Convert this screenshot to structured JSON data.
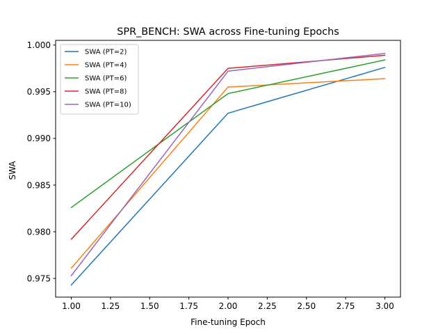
{
  "chart_data": {
    "type": "line",
    "title": "SPR_BENCH: SWA across Fine-tuning Epochs",
    "xlabel": "Fine-tuning Epoch",
    "ylabel": "SWA",
    "x": [
      1,
      2,
      3
    ],
    "xlim": [
      0.9,
      3.1
    ],
    "ylim": [
      0.973,
      1.0005
    ],
    "xticks": [
      1.0,
      1.25,
      1.5,
      1.75,
      2.0,
      2.25,
      2.5,
      2.75,
      3.0
    ],
    "xtick_labels": [
      "1.00",
      "1.25",
      "1.50",
      "1.75",
      "2.00",
      "2.25",
      "2.50",
      "2.75",
      "3.00"
    ],
    "yticks": [
      0.975,
      0.98,
      0.985,
      0.99,
      0.995,
      1.0
    ],
    "ytick_labels": [
      "0.975",
      "0.980",
      "0.985",
      "0.990",
      "0.995",
      "1.000"
    ],
    "grid": false,
    "legend_position": "top-left",
    "series": [
      {
        "name": "SWA (PT=2)",
        "color": "#1f77b4",
        "values": [
          0.9743,
          0.9927,
          0.9976
        ]
      },
      {
        "name": "SWA (PT=4)",
        "color": "#ff7f0e",
        "values": [
          0.9761,
          0.9955,
          0.9964
        ]
      },
      {
        "name": "SWA (PT=6)",
        "color": "#2ca02c",
        "values": [
          0.9826,
          0.9948,
          0.9984
        ]
      },
      {
        "name": "SWA (PT=8)",
        "color": "#d62728",
        "values": [
          0.9792,
          0.9975,
          0.9989
        ]
      },
      {
        "name": "SWA (PT=10)",
        "color": "#9467bd",
        "values": [
          0.9753,
          0.9972,
          0.9991
        ]
      }
    ]
  }
}
